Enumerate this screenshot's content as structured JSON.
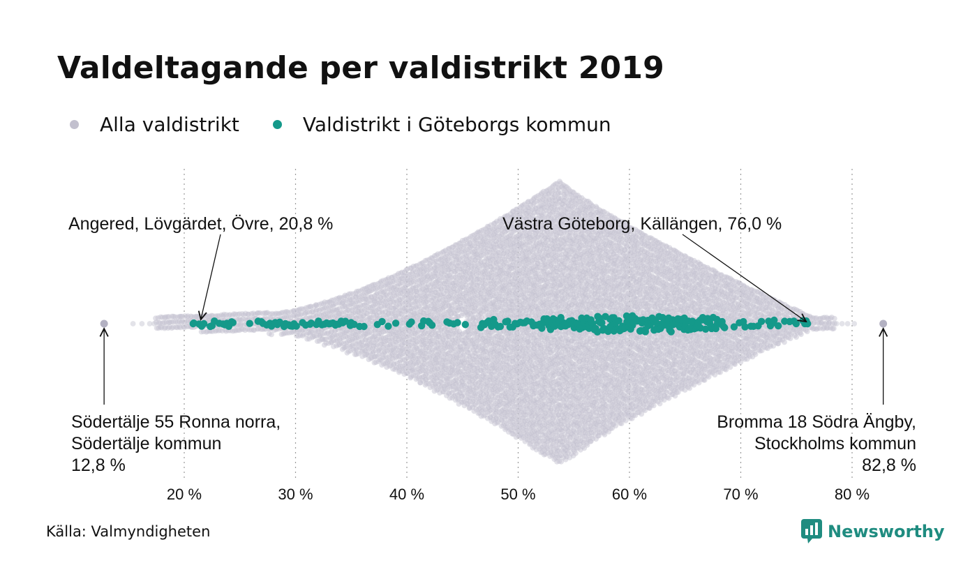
{
  "title": "Valdeltagande per valdistrikt 2019",
  "legend": [
    {
      "label": "Alla valdistrikt",
      "color": "#c2c0ce"
    },
    {
      "label": "Valdistrikt i Göteborgs kommun",
      "color": "#14998a"
    }
  ],
  "source": "Källa: Valmyndigheten",
  "brand": {
    "name": "Newsworthy",
    "icon": "bar-chart-badge-icon",
    "color": "#1f8c80"
  },
  "chart_data": {
    "type": "scatter",
    "subtype": "beeswarm",
    "xlim": [
      13,
      83
    ],
    "grid": "vertical-dotted",
    "x_ticks": [
      {
        "value": 20,
        "label": "20 %"
      },
      {
        "value": 30,
        "label": "30 %"
      },
      {
        "value": 40,
        "label": "40 %"
      },
      {
        "value": 50,
        "label": "50 %"
      },
      {
        "value": 60,
        "label": "60 %"
      },
      {
        "value": 70,
        "label": "70 %"
      },
      {
        "value": 80,
        "label": "80 %"
      }
    ],
    "series": [
      {
        "name": "Alla valdistrikt",
        "color": "#c2c0ce",
        "range": [
          12.8,
          82.8
        ],
        "peak": 53.8
      },
      {
        "name": "Valdistrikt i Göteborgs kommun",
        "color": "#14998a",
        "range": [
          20.8,
          76.0
        ]
      }
    ],
    "highlights": [
      {
        "value": 12.8,
        "series": 0,
        "lines": [
          "Södertälje 55 Ronna norra,",
          "Södertälje kommun",
          "12,8 %"
        ],
        "position": "below-left"
      },
      {
        "value": 20.8,
        "series": 1,
        "lines": [
          "Angered, Lövgärdet, Övre, 20,8 %"
        ],
        "position": "above"
      },
      {
        "value": 76.0,
        "series": 1,
        "lines": [
          "Västra Göteborg, Källängen, 76,0 %"
        ],
        "position": "above"
      },
      {
        "value": 82.8,
        "series": 0,
        "lines": [
          "Bromma 18 Södra Ängby,",
          "Stockholms kommun",
          "82,8 %"
        ],
        "position": "below-right"
      }
    ]
  }
}
